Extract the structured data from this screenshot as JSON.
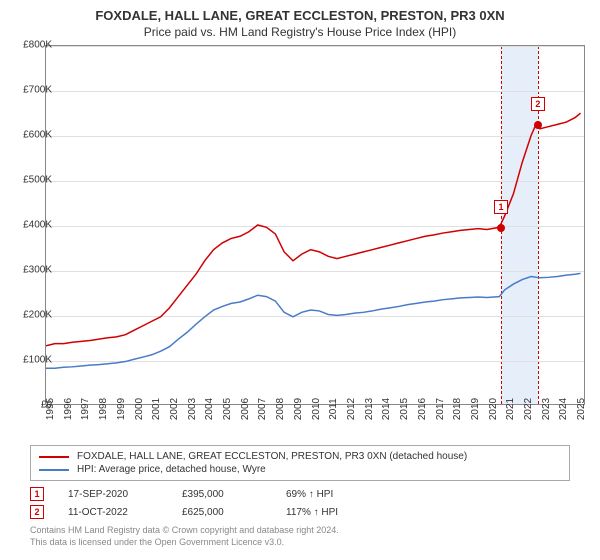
{
  "title": "FOXDALE, HALL LANE, GREAT ECCLESTON, PRESTON, PR3 0XN",
  "subtitle": "Price paid vs. HM Land Registry's House Price Index (HPI)",
  "chart": {
    "type": "line",
    "background_color": "#ffffff",
    "grid_color": "#e0e0e0",
    "border_color": "#888888",
    "ylim": [
      0,
      800000
    ],
    "ytick_step": 100000,
    "yticks": [
      "£0",
      "£100K",
      "£200K",
      "£300K",
      "£400K",
      "£500K",
      "£600K",
      "£700K",
      "£800K"
    ],
    "xlim": [
      1995,
      2025.5
    ],
    "xticks": [
      1995,
      1996,
      1997,
      1998,
      1999,
      2000,
      2001,
      2002,
      2003,
      2004,
      2005,
      2006,
      2007,
      2008,
      2009,
      2010,
      2011,
      2012,
      2013,
      2014,
      2015,
      2016,
      2017,
      2018,
      2019,
      2020,
      2021,
      2022,
      2023,
      2024,
      2025
    ],
    "label_fontsize": 10,
    "line_width": 1.5,
    "series": [
      {
        "name": "property",
        "color": "#d00000",
        "data": [
          [
            1995,
            130000
          ],
          [
            1995.5,
            135000
          ],
          [
            1996,
            135000
          ],
          [
            1996.5,
            138000
          ],
          [
            1997,
            140000
          ],
          [
            1997.5,
            142000
          ],
          [
            1998,
            145000
          ],
          [
            1998.5,
            148000
          ],
          [
            1999,
            150000
          ],
          [
            1999.5,
            155000
          ],
          [
            2000,
            165000
          ],
          [
            2000.5,
            175000
          ],
          [
            2001,
            185000
          ],
          [
            2001.5,
            195000
          ],
          [
            2002,
            215000
          ],
          [
            2002.5,
            240000
          ],
          [
            2003,
            265000
          ],
          [
            2003.5,
            290000
          ],
          [
            2004,
            320000
          ],
          [
            2004.5,
            345000
          ],
          [
            2005,
            360000
          ],
          [
            2005.5,
            370000
          ],
          [
            2006,
            375000
          ],
          [
            2006.5,
            385000
          ],
          [
            2007,
            400000
          ],
          [
            2007.5,
            395000
          ],
          [
            2008,
            380000
          ],
          [
            2008.5,
            340000
          ],
          [
            2009,
            320000
          ],
          [
            2009.5,
            335000
          ],
          [
            2010,
            345000
          ],
          [
            2010.5,
            340000
          ],
          [
            2011,
            330000
          ],
          [
            2011.5,
            325000
          ],
          [
            2012,
            330000
          ],
          [
            2012.5,
            335000
          ],
          [
            2013,
            340000
          ],
          [
            2013.5,
            345000
          ],
          [
            2014,
            350000
          ],
          [
            2014.5,
            355000
          ],
          [
            2015,
            360000
          ],
          [
            2015.5,
            365000
          ],
          [
            2016,
            370000
          ],
          [
            2016.5,
            375000
          ],
          [
            2017,
            378000
          ],
          [
            2017.5,
            382000
          ],
          [
            2018,
            385000
          ],
          [
            2018.5,
            388000
          ],
          [
            2019,
            390000
          ],
          [
            2019.5,
            392000
          ],
          [
            2020,
            390000
          ],
          [
            2020.7,
            395000
          ],
          [
            2021,
            420000
          ],
          [
            2021.5,
            470000
          ],
          [
            2022,
            540000
          ],
          [
            2022.5,
            600000
          ],
          [
            2022.78,
            625000
          ],
          [
            2023,
            615000
          ],
          [
            2023.5,
            620000
          ],
          [
            2024,
            625000
          ],
          [
            2024.5,
            630000
          ],
          [
            2025,
            640000
          ],
          [
            2025.3,
            650000
          ]
        ]
      },
      {
        "name": "hpi",
        "color": "#4a7bc8",
        "data": [
          [
            1995,
            80000
          ],
          [
            1995.5,
            80000
          ],
          [
            1996,
            82000
          ],
          [
            1996.5,
            83000
          ],
          [
            1997,
            85000
          ],
          [
            1997.5,
            87000
          ],
          [
            1998,
            88000
          ],
          [
            1998.5,
            90000
          ],
          [
            1999,
            92000
          ],
          [
            1999.5,
            95000
          ],
          [
            2000,
            100000
          ],
          [
            2000.5,
            105000
          ],
          [
            2001,
            110000
          ],
          [
            2001.5,
            118000
          ],
          [
            2002,
            128000
          ],
          [
            2002.5,
            145000
          ],
          [
            2003,
            160000
          ],
          [
            2003.5,
            178000
          ],
          [
            2004,
            195000
          ],
          [
            2004.5,
            210000
          ],
          [
            2005,
            218000
          ],
          [
            2005.5,
            225000
          ],
          [
            2006,
            228000
          ],
          [
            2006.5,
            235000
          ],
          [
            2007,
            243000
          ],
          [
            2007.5,
            240000
          ],
          [
            2008,
            230000
          ],
          [
            2008.5,
            205000
          ],
          [
            2009,
            195000
          ],
          [
            2009.5,
            205000
          ],
          [
            2010,
            210000
          ],
          [
            2010.5,
            208000
          ],
          [
            2011,
            200000
          ],
          [
            2011.5,
            198000
          ],
          [
            2012,
            200000
          ],
          [
            2012.5,
            203000
          ],
          [
            2013,
            205000
          ],
          [
            2013.5,
            208000
          ],
          [
            2014,
            212000
          ],
          [
            2014.5,
            215000
          ],
          [
            2015,
            218000
          ],
          [
            2015.5,
            222000
          ],
          [
            2016,
            225000
          ],
          [
            2016.5,
            228000
          ],
          [
            2017,
            230000
          ],
          [
            2017.5,
            233000
          ],
          [
            2018,
            235000
          ],
          [
            2018.5,
            237000
          ],
          [
            2019,
            238000
          ],
          [
            2019.5,
            239000
          ],
          [
            2020,
            238000
          ],
          [
            2020.7,
            240000
          ],
          [
            2021,
            255000
          ],
          [
            2021.5,
            268000
          ],
          [
            2022,
            278000
          ],
          [
            2022.5,
            285000
          ],
          [
            2023,
            282000
          ],
          [
            2023.5,
            283000
          ],
          [
            2024,
            285000
          ],
          [
            2024.5,
            288000
          ],
          [
            2025,
            290000
          ],
          [
            2025.3,
            292000
          ]
        ]
      }
    ],
    "band": {
      "x_start": 2020.7,
      "x_end": 2022.78,
      "fill": "#e6eef9",
      "border_color": "#d00000"
    },
    "markers": [
      {
        "id": "1",
        "x": 2020.7,
        "y": 395000,
        "color": "#d00000"
      },
      {
        "id": "2",
        "x": 2022.78,
        "y": 625000,
        "color": "#d00000"
      }
    ]
  },
  "legend": {
    "items": [
      {
        "color": "#d00000",
        "label": "FOXDALE, HALL LANE, GREAT ECCLESTON, PRESTON, PR3 0XN (detached house)"
      },
      {
        "color": "#4a7bc8",
        "label": "HPI: Average price, detached house, Wyre"
      }
    ]
  },
  "transactions": [
    {
      "id": "1",
      "date": "17-SEP-2020",
      "price": "£395,000",
      "hpi": "69% ↑ HPI"
    },
    {
      "id": "2",
      "date": "11-OCT-2022",
      "price": "£625,000",
      "hpi": "117% ↑ HPI"
    }
  ],
  "footer": {
    "line1": "Contains HM Land Registry data © Crown copyright and database right 2024.",
    "line2": "This data is licensed under the Open Government Licence v3.0."
  }
}
